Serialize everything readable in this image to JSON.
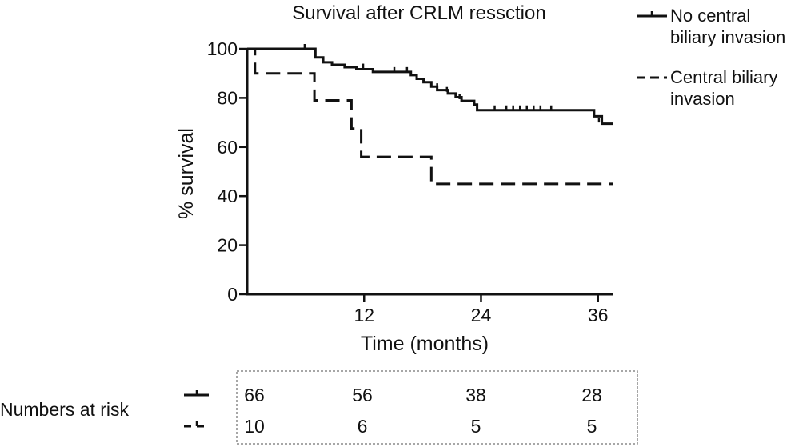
{
  "chart_data": {
    "type": "line",
    "title": "Survival after CRLM ressction",
    "xlabel": "Time (months)",
    "ylabel": "% survival",
    "xlim": [
      0,
      37.5
    ],
    "ylim": [
      0,
      100
    ],
    "x_ticks": [
      12,
      24,
      36
    ],
    "y_ticks": [
      0,
      20,
      40,
      60,
      80,
      100
    ],
    "grid": false,
    "legend_position": "top-right",
    "series": [
      {
        "name_lines": [
          "No central",
          "biliary invasion"
        ],
        "line_style": "solid",
        "color": "#111111",
        "steps": [
          [
            0,
            100
          ],
          [
            6.6,
            100
          ],
          [
            7,
            96.5
          ],
          [
            7.8,
            94.5
          ],
          [
            8.7,
            93.5
          ],
          [
            10,
            92.5
          ],
          [
            11.2,
            91.7
          ],
          [
            12.9,
            90.6
          ],
          [
            16.8,
            89.3
          ],
          [
            17.4,
            87.8
          ],
          [
            18.1,
            86.4
          ],
          [
            18.9,
            84.6
          ],
          [
            19.5,
            83.2
          ],
          [
            20.6,
            81.8
          ],
          [
            21.4,
            80.3
          ],
          [
            22,
            78.8
          ],
          [
            23.3,
            77.3
          ],
          [
            23.6,
            75
          ],
          [
            34.6,
            75
          ],
          [
            35.6,
            72.5
          ],
          [
            36.4,
            69.5
          ],
          [
            37.5,
            69.5
          ]
        ],
        "censored": [
          [
            5.9,
            100
          ],
          [
            11.9,
            92
          ],
          [
            15.1,
            90.6
          ],
          [
            16.4,
            90.6
          ],
          [
            19.5,
            84
          ],
          [
            20.5,
            82.5
          ],
          [
            21.8,
            79.5
          ],
          [
            25.4,
            75
          ],
          [
            26.6,
            75
          ],
          [
            27.3,
            75
          ],
          [
            28,
            75
          ],
          [
            28.7,
            75
          ],
          [
            29.4,
            75
          ],
          [
            30.1,
            75
          ],
          [
            31.2,
            75
          ],
          [
            36.1,
            70
          ]
        ]
      },
      {
        "name_lines": [
          "Central biliary",
          "invasion"
        ],
        "line_style": "dashed",
        "color": "#111111",
        "steps": [
          [
            0,
            100
          ],
          [
            0.8,
            100
          ],
          [
            0.8,
            90
          ],
          [
            6.9,
            90
          ],
          [
            6.9,
            79
          ],
          [
            10.7,
            79
          ],
          [
            10.7,
            67.5
          ],
          [
            11.7,
            67.5
          ],
          [
            11.7,
            56
          ],
          [
            18.9,
            56
          ],
          [
            18.9,
            45
          ],
          [
            37.5,
            45
          ]
        ],
        "censored": []
      }
    ],
    "risk_table": {
      "label": "Numbers at risk",
      "rows": [
        [
          "66",
          "56",
          "38",
          "28"
        ],
        [
          "10",
          "6",
          "5",
          "5"
        ]
      ]
    }
  }
}
